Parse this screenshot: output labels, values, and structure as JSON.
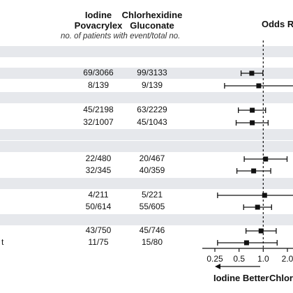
{
  "header": {
    "col1_line1": "Iodine",
    "col1_line2": "Povacrylex",
    "col2_line1": "Chlorhexidine",
    "col2_line2": "Gluconate",
    "col3": "Odds Rat",
    "subheader": "no. of patients with event/total no."
  },
  "colors": {
    "band": "#e6e8ec",
    "ink": "#111111"
  },
  "chart_data": {
    "type": "forest",
    "xscale": "log2",
    "xlim": [
      0.25,
      4.0
    ],
    "reference": 1.0,
    "ticks": [
      "0.25",
      "0.5",
      "1.0",
      "2.0"
    ],
    "favor_left": "Iodine Better",
    "favor_right": "Chlor",
    "rows": [
      {
        "label": "",
        "col1": "69/3066",
        "col2": "99/3133",
        "or": 0.72,
        "lo": 0.53,
        "hi": 0.99
      },
      {
        "label": "",
        "col1": "8/139",
        "col2": "9/139",
        "or": 0.88,
        "lo": 0.33,
        "hi": 2.4
      },
      {
        "label": "",
        "col1": "45/2198",
        "col2": "63/2229",
        "or": 0.73,
        "lo": 0.49,
        "hi": 1.07
      },
      {
        "label": "",
        "col1": "32/1007",
        "col2": "45/1043",
        "or": 0.73,
        "lo": 0.46,
        "hi": 1.15
      },
      {
        "label": "",
        "col1": "22/480",
        "col2": "20/467",
        "or": 1.07,
        "lo": 0.58,
        "hi": 1.98
      },
      {
        "label": "",
        "col1": "32/345",
        "col2": "40/359",
        "or": 0.76,
        "lo": 0.47,
        "hi": 1.24
      },
      {
        "label": "",
        "col1": "4/211",
        "col2": "5/221",
        "or": 1.04,
        "lo": 0.27,
        "hi": 4.0
      },
      {
        "label": "",
        "col1": "50/614",
        "col2": "55/605",
        "or": 0.85,
        "lo": 0.57,
        "hi": 1.27
      },
      {
        "label": "",
        "col1": "43/750",
        "col2": "45/746",
        "or": 0.94,
        "lo": 0.61,
        "hi": 1.45
      },
      {
        "label": "t",
        "col1": "11/75",
        "col2": "15/80",
        "or": 0.62,
        "lo": 0.27,
        "hi": 1.49
      }
    ]
  }
}
